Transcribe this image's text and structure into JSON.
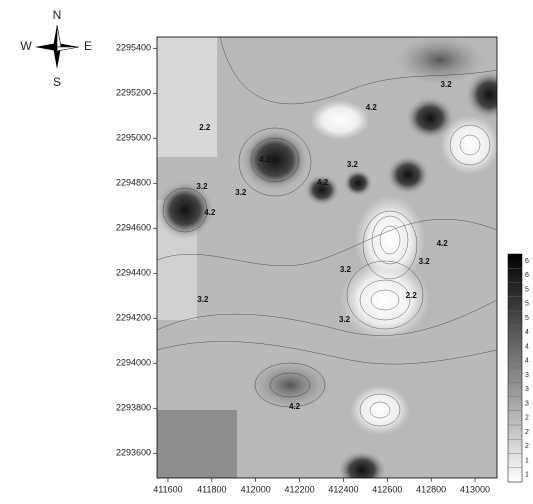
{
  "chart_data": {
    "type": "contour",
    "compass": {
      "n": "N",
      "e": "E",
      "s": "S",
      "w": "W"
    },
    "xlim": [
      411550,
      413100
    ],
    "ylim": [
      2293490,
      2295450
    ],
    "xticks": [
      411600,
      411800,
      412000,
      412200,
      412400,
      412600,
      412800,
      413000
    ],
    "yticks": [
      2293600,
      2293800,
      2294000,
      2294200,
      2294400,
      2294600,
      2294800,
      2295000,
      2295200,
      2295400
    ],
    "contour_labels": [
      {
        "value": 3.2,
        "x": 412868,
        "y": 2295237
      },
      {
        "value": 4.2,
        "x": 412527,
        "y": 2295134
      },
      {
        "value": 2.2,
        "x": 411768,
        "y": 2295046
      },
      {
        "value": 4.2,
        "x": 412041,
        "y": 2294903
      },
      {
        "value": 3.2,
        "x": 412441,
        "y": 2294881
      },
      {
        "value": 4.2,
        "x": 412305,
        "y": 2294801
      },
      {
        "value": 3.2,
        "x": 411755,
        "y": 2294783
      },
      {
        "value": 3.2,
        "x": 411932,
        "y": 2294757
      },
      {
        "value": 4.2,
        "x": 411791,
        "y": 2294668
      },
      {
        "value": 4.2,
        "x": 412850,
        "y": 2294530
      },
      {
        "value": 3.2,
        "x": 412768,
        "y": 2294450
      },
      {
        "value": 3.2,
        "x": 412409,
        "y": 2294414
      },
      {
        "value": 2.2,
        "x": 412709,
        "y": 2294299
      },
      {
        "value": 3.2,
        "x": 411759,
        "y": 2294281
      },
      {
        "value": 3.2,
        "x": 412405,
        "y": 2294192
      },
      {
        "value": 4.2,
        "x": 412177,
        "y": 2293806
      }
    ],
    "colorbar_labels": [
      "6",
      "6",
      "5",
      "5",
      "5",
      "4",
      "4",
      "4",
      "3",
      "3",
      "3",
      "2",
      "2",
      "2",
      "1",
      "1"
    ]
  }
}
